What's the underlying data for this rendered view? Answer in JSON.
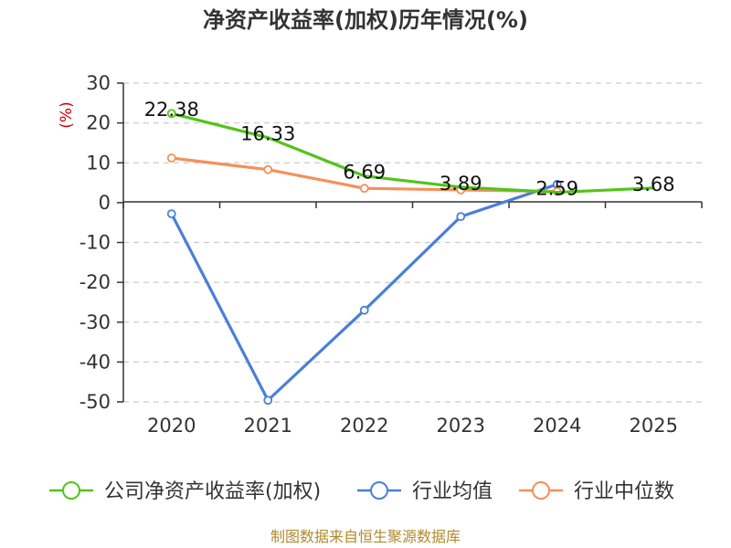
{
  "chart_data": {
    "type": "line",
    "title": "净资产收益率(加权)历年情况(%)",
    "ylabel": "(%)",
    "xlabel": "",
    "categories": [
      "2020",
      "2021",
      "2022",
      "2023",
      "2024",
      "2025"
    ],
    "ylim": [
      -50,
      30
    ],
    "yticks": [
      30,
      20,
      10,
      0,
      -10,
      -20,
      -30,
      -40,
      -50
    ],
    "grid": true,
    "legend_position": "bottom",
    "series": [
      {
        "name": "公司净资产收益率(加权)",
        "color": "#52c41a",
        "values": [
          22.38,
          16.33,
          6.69,
          3.89,
          2.59,
          3.68
        ],
        "labels": [
          "22.38",
          "16.33",
          "6.69",
          "3.89",
          "2.59",
          "3.68"
        ],
        "show_markers": [
          true,
          false,
          false,
          false,
          false,
          false
        ]
      },
      {
        "name": "行业均值",
        "color": "#4a7fd9",
        "values": [
          -2.8,
          -49.6,
          -27.0,
          -3.5,
          4.6,
          null
        ],
        "show_markers": [
          true,
          true,
          true,
          true,
          true,
          false
        ]
      },
      {
        "name": "行业中位数",
        "color": "#f5905a",
        "values": [
          11.2,
          8.3,
          3.6,
          3.2,
          2.8,
          null
        ],
        "show_markers": [
          true,
          true,
          true,
          true,
          true,
          false
        ]
      }
    ],
    "source": "制图数据来自恒生聚源数据库"
  }
}
